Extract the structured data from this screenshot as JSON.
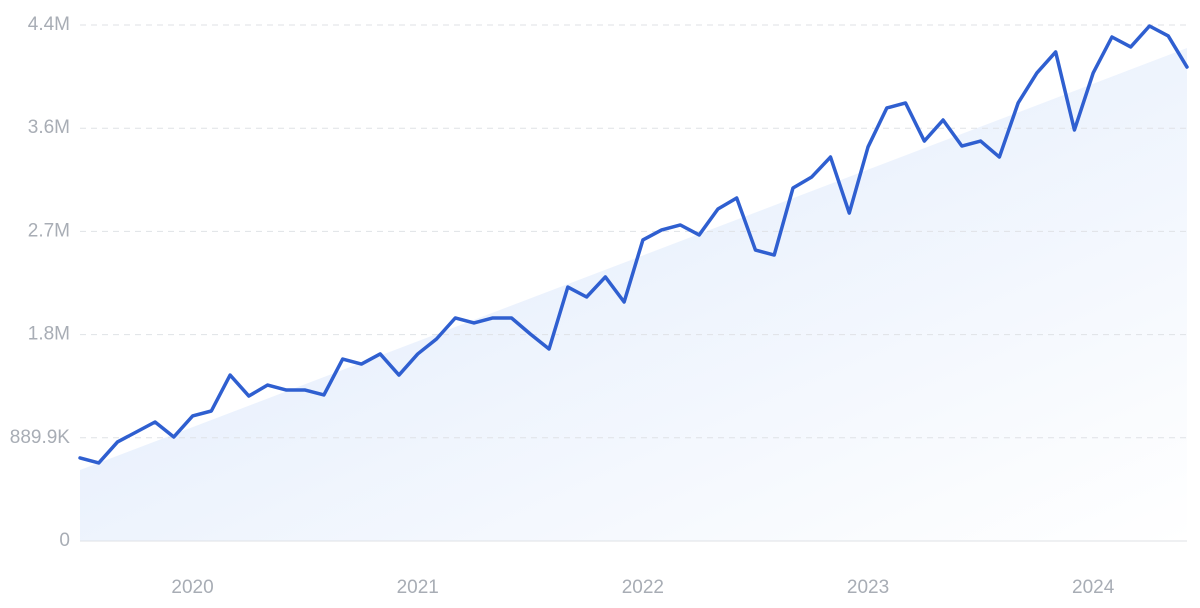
{
  "chart_data": {
    "type": "line",
    "categories": [
      null,
      null,
      null,
      null,
      null,
      null,
      "2020",
      null,
      null,
      null,
      null,
      null,
      null,
      null,
      null,
      null,
      null,
      null,
      "2021",
      null,
      null,
      null,
      null,
      null,
      null,
      null,
      null,
      null,
      null,
      null,
      "2022",
      null,
      null,
      null,
      null,
      null,
      null,
      null,
      null,
      null,
      null,
      null,
      "2023",
      null,
      null,
      null,
      null,
      null,
      null,
      null,
      null,
      null,
      null,
      null,
      "2024",
      null,
      null,
      null,
      null,
      null
    ],
    "series": [
      {
        "color": "#2f5fd0",
        "values": [
          716000,
          673000,
          854000,
          940000,
          1026000,
          897000,
          1078000,
          1121000,
          1431000,
          1250000,
          1345000,
          1302000,
          1302000,
          1259000,
          1569000,
          1526000,
          1613000,
          1431000,
          1613000,
          1742000,
          1923000,
          1880000,
          1923000,
          1923000,
          1785000,
          1656000,
          2190000,
          2104000,
          2277000,
          2061000,
          2596000,
          2682000,
          2725000,
          2639000,
          2863000,
          2958000,
          2509000,
          2466000,
          3044000,
          3139000,
          3311000,
          2828000,
          3398000,
          3734000,
          3777000,
          3449000,
          3630000,
          3406000,
          3449000,
          3311000,
          3777000,
          4036000,
          4217000,
          3544000,
          4036000,
          4346000,
          4260000,
          4441000,
          4355000,
          4087000
        ]
      }
    ],
    "trend": {
      "x": [
        0,
        59
      ],
      "values": [
        612000,
        4251000
      ],
      "color": "#dce8fb"
    },
    "ylim": [
      0,
      4449500
    ],
    "yticks": [
      0,
      {
        "value": 889900,
        "label": "889.9K"
      },
      {
        "value": 1779800,
        "label": "1.8M"
      },
      {
        "value": 2669700,
        "label": "2.7M"
      },
      {
        "value": 3559600,
        "label": "3.6M"
      },
      {
        "value": 4449500,
        "label": "4.4M"
      }
    ],
    "grid": true
  }
}
